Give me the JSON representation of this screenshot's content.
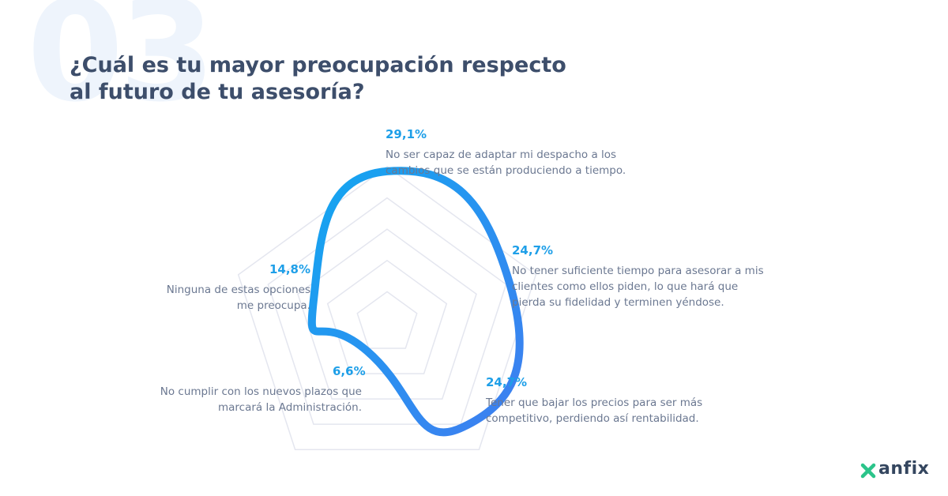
{
  "header": {
    "section_number": "03",
    "title": "¿Cuál es tu mayor preocupación respecto al futuro de tu asesoría?"
  },
  "brand": {
    "name": "anfix",
    "icon": "anfix-x-icon",
    "colors": {
      "green": "#2bc48a",
      "text": "#34465f"
    }
  },
  "chart_data": {
    "type": "radar",
    "title": "",
    "axes": [
      {
        "value_label": "29,1%",
        "value": 29.1,
        "label": "No ser capaz de adaptar mi despacho a los cambios que se están produciendo a tiempo."
      },
      {
        "value_label": "24,7%",
        "value": 24.7,
        "label": "No tener suficiente tiempo para asesorar a mis clientes como ellos piden, lo que hará que pierda su fidelidad y terminen yéndose."
      },
      {
        "value_label": "24,7%",
        "value": 24.7,
        "label": "Tener que bajar los precios para ser más competitivo, perdiendo así rentabilidad."
      },
      {
        "value_label": "6,6%",
        "value": 6.6,
        "label": "No cumplir con los nuevos plazos que marcará la Administración."
      },
      {
        "value_label": "14,8%",
        "value": 14.8,
        "label": "Ninguna de estas opciones me preocupa."
      }
    ],
    "range": [
      0,
      30
    ],
    "grid_levels": 5,
    "colors": {
      "line_start": "#13a6f0",
      "line_end": "#3f7ef0",
      "grid": "#e4e6ef"
    }
  }
}
